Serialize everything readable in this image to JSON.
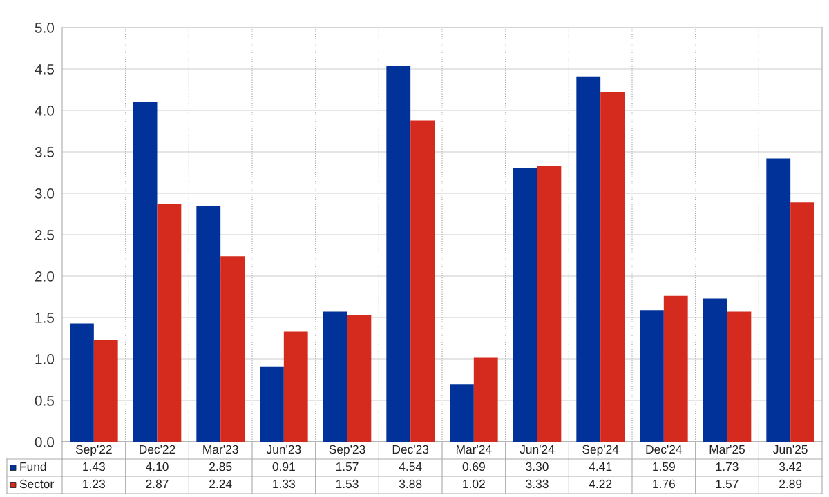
{
  "chart_data": {
    "type": "bar",
    "categories": [
      "Sep'22",
      "Dec'22",
      "Mar'23",
      "Jun'23",
      "Sep'23",
      "Dec'23",
      "Mar'24",
      "Jun'24",
      "Sep'24",
      "Dec'24",
      "Mar'25",
      "Jun'25"
    ],
    "series": [
      {
        "name": "Fund",
        "color": "#003299",
        "values": [
          1.43,
          4.1,
          2.85,
          0.91,
          1.57,
          4.54,
          0.69,
          3.3,
          4.41,
          1.59,
          1.73,
          3.42
        ],
        "value_labels": [
          "1.43",
          "4.10",
          "2.85",
          "0.91",
          "1.57",
          "4.54",
          "0.69",
          "3.30",
          "4.41",
          "1.59",
          "1.73",
          "3.42"
        ]
      },
      {
        "name": "Sector",
        "color": "#d52b1e",
        "values": [
          1.23,
          2.87,
          2.24,
          1.33,
          1.53,
          3.88,
          1.02,
          3.33,
          4.22,
          1.76,
          1.57,
          2.89
        ],
        "value_labels": [
          "1.23",
          "2.87",
          "2.24",
          "1.33",
          "1.53",
          "3.88",
          "1.02",
          "3.33",
          "4.22",
          "1.76",
          "1.57",
          "2.89"
        ]
      }
    ],
    "ylim": [
      0,
      5.0
    ],
    "yticks": [
      {
        "value": 0,
        "label": "0.0"
      },
      {
        "value": 0.5,
        "label": "0.5"
      },
      {
        "value": 1.0,
        "label": "1.0"
      },
      {
        "value": 1.5,
        "label": "1.5"
      },
      {
        "value": 2.0,
        "label": "2.0"
      },
      {
        "value": 2.5,
        "label": "2.5"
      },
      {
        "value": 3.0,
        "label": "3.0"
      },
      {
        "value": 3.5,
        "label": "3.5"
      },
      {
        "value": 4.0,
        "label": "4.0"
      },
      {
        "value": 4.5,
        "label": "4.5"
      },
      {
        "value": 5.0,
        "label": "5.0"
      }
    ],
    "grid": true,
    "legend": "bottom"
  }
}
